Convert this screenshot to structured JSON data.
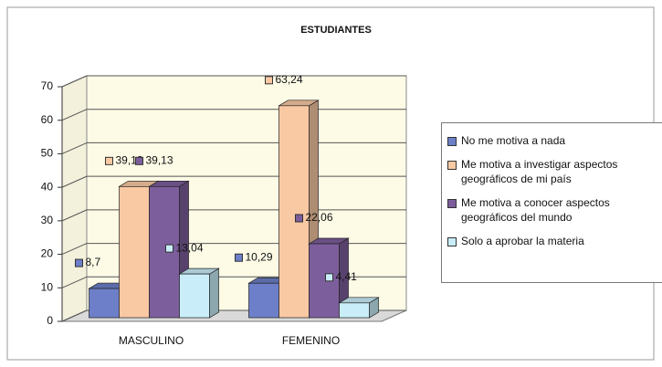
{
  "chart_data": {
    "type": "bar3d",
    "title": "ESTUDIANTES",
    "categories": [
      "MASCULINO",
      "FEMENINO"
    ],
    "series": [
      {
        "name": "No me motiva a nada",
        "color": "#6c7fc8",
        "values": [
          8.7,
          10.29
        ],
        "value_labels": [
          "8,7",
          "10,29"
        ]
      },
      {
        "name": "Me motiva a investigar aspectos geográficos de mi país",
        "color": "#f9c9a4",
        "values": [
          39.13,
          63.24
        ],
        "value_labels": [
          "39,13",
          "63,24"
        ]
      },
      {
        "name": "Me motiva a conocer aspectos geográficos del mundo",
        "color": "#7d5e9c",
        "values": [
          39.13,
          22.06
        ],
        "value_labels": [
          "39,13",
          "22,06"
        ]
      },
      {
        "name": "Solo a aprobar la materia",
        "color": "#c9eef9",
        "values": [
          13.04,
          4.41
        ],
        "value_labels": [
          "13,04",
          "4,41"
        ]
      }
    ],
    "ylim": [
      0,
      70
    ],
    "yticks": [
      0,
      10,
      20,
      30,
      40,
      50,
      60,
      70
    ],
    "grid": true,
    "legend": "right"
  }
}
